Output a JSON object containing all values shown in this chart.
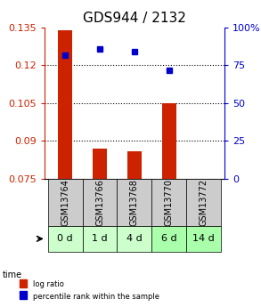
{
  "title": "GDS944 / 2132",
  "samples": [
    "GSM13764",
    "GSM13766",
    "GSM13768",
    "GSM13770",
    "GSM13772"
  ],
  "time_labels": [
    "0 d",
    "1 d",
    "4 d",
    "6 d",
    "14 d"
  ],
  "log_ratio": [
    0.134,
    0.087,
    0.086,
    0.105,
    0.075
  ],
  "percentile_rank": [
    82,
    86,
    84,
    72,
    null
  ],
  "ylim_left": [
    0.075,
    0.135
  ],
  "ylim_right": [
    0,
    100
  ],
  "yticks_left": [
    0.075,
    0.09,
    0.105,
    0.12,
    0.135
  ],
  "yticks_right": [
    0,
    25,
    50,
    75,
    100
  ],
  "bar_color": "#cc2200",
  "dot_color": "#0000cc",
  "bar_width": 0.4,
  "title_fontsize": 11,
  "tick_fontsize": 8,
  "label_fontsize": 8,
  "gsm_label_fontsize": 7,
  "time_label_fontsize": 8,
  "background_plot": "#ffffff",
  "background_gsm": "#cccccc",
  "background_time_even": "#aaffaa",
  "background_time_odd": "#ccffcc",
  "grid_color": "#000000",
  "right_axis_color": "#0000cc",
  "left_axis_color": "#cc2200"
}
